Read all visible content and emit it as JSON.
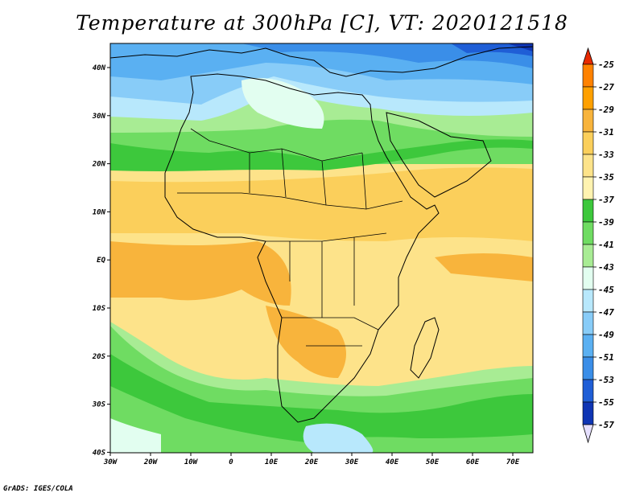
{
  "title": "Temperature at 300hPa [C], VT: 2020121518",
  "footer": "GrADS: IGES/COLA",
  "map": {
    "region": "Africa",
    "projection": "lat-lon",
    "lon_range": [
      -30,
      75
    ],
    "lat_range": [
      -40,
      45
    ],
    "lon_labels": [
      "30W",
      "20W",
      "10W",
      "0",
      "10E",
      "20E",
      "30E",
      "40E",
      "50E",
      "60E",
      "70E"
    ],
    "lat_labels": [
      "40N",
      "30N",
      "20N",
      "10N",
      "EQ",
      "10S",
      "20S",
      "30S",
      "40S"
    ]
  },
  "colorbar": {
    "levels": [
      "-25",
      "-27",
      "-29",
      "-31",
      "-33",
      "-35",
      "-37",
      "-39",
      "-41",
      "-43",
      "-45",
      "-47",
      "-49",
      "-51",
      "-53",
      "-55",
      "-57"
    ],
    "colors": [
      "#ff5a00",
      "#ff8200",
      "#ffa000",
      "#f8b43c",
      "#fbcf5b",
      "#fde38a",
      "#fff3b0",
      "#3dc83c",
      "#6fdc62",
      "#a8ec94",
      "#e2fef0",
      "#b8e8fc",
      "#88ccf8",
      "#5ab0f2",
      "#3a8ee8",
      "#1f5ed6",
      "#0f35b4",
      "#0a1a80"
    ],
    "top_arrow_color": "#e82a00",
    "bottom_arrow_color": "#e6e0ff"
  }
}
